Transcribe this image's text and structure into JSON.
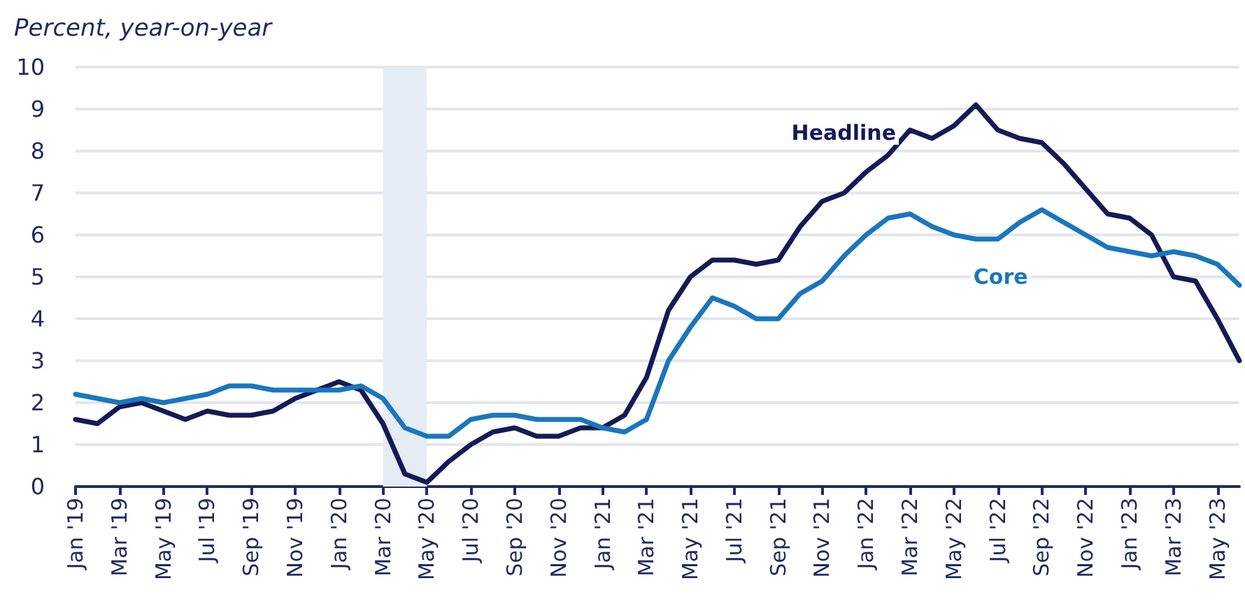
{
  "chart_data": {
    "type": "line",
    "ylabel": "Percent, year-on-year",
    "categories": [
      "Jan '19",
      null,
      "Mar '19",
      null,
      "May '19",
      null,
      "Jul '19",
      null,
      "Sep '19",
      null,
      "Nov '19",
      null,
      "Jan '20",
      null,
      "Mar '20",
      null,
      "May '20",
      null,
      "Jul '20",
      null,
      "Sep '20",
      null,
      "Nov '20",
      null,
      "Jan '21",
      null,
      "Mar '21",
      null,
      "May '21",
      null,
      "Jul '21",
      null,
      "Sep '21",
      null,
      "Nov '21",
      null,
      "Jan '22",
      null,
      "Mar '22",
      null,
      "May '22",
      null,
      "Jul '22",
      null,
      "Sep '22",
      null,
      "Nov '22",
      null,
      "Jan '23",
      null,
      "Mar '23",
      null,
      "May '23",
      null
    ],
    "series": [
      {
        "name": "Headline",
        "color": "#141a55",
        "values": [
          1.6,
          1.5,
          1.9,
          2.0,
          1.8,
          1.6,
          1.8,
          1.7,
          1.7,
          1.8,
          2.1,
          2.3,
          2.5,
          2.3,
          1.5,
          0.3,
          0.1,
          0.6,
          1.0,
          1.3,
          1.4,
          1.2,
          1.2,
          1.4,
          1.4,
          1.7,
          2.6,
          4.2,
          5.0,
          5.4,
          5.4,
          5.3,
          5.4,
          6.2,
          6.8,
          7.0,
          7.5,
          7.9,
          8.5,
          8.3,
          8.6,
          9.1,
          8.5,
          8.3,
          8.2,
          7.7,
          7.1,
          6.5,
          6.4,
          6.0,
          5.0,
          4.9,
          4.0,
          3.0
        ]
      },
      {
        "name": "Core",
        "color": "#1a76bd",
        "values": [
          2.2,
          2.1,
          2.0,
          2.1,
          2.0,
          2.1,
          2.2,
          2.4,
          2.4,
          2.3,
          2.3,
          2.3,
          2.3,
          2.4,
          2.1,
          1.4,
          1.2,
          1.2,
          1.6,
          1.7,
          1.7,
          1.6,
          1.6,
          1.6,
          1.4,
          1.3,
          1.6,
          3.0,
          3.8,
          4.5,
          4.3,
          4.0,
          4.0,
          4.6,
          4.9,
          5.5,
          6.0,
          6.4,
          6.5,
          6.2,
          6.0,
          5.9,
          5.9,
          6.3,
          6.6,
          6.3,
          6.0,
          5.7,
          5.6,
          5.5,
          5.6,
          5.5,
          5.3,
          4.8
        ]
      }
    ],
    "ylim": [
      0,
      10
    ],
    "yticks": [
      0,
      1,
      2,
      3,
      4,
      5,
      6,
      7,
      8,
      9,
      10
    ],
    "grid": "y",
    "legend": false,
    "marker": "none",
    "line_style": "solid",
    "bands": [
      {
        "axis": "x",
        "from": "Mar '20",
        "to": "May '20",
        "color": "#e6ecf4"
      }
    ]
  }
}
